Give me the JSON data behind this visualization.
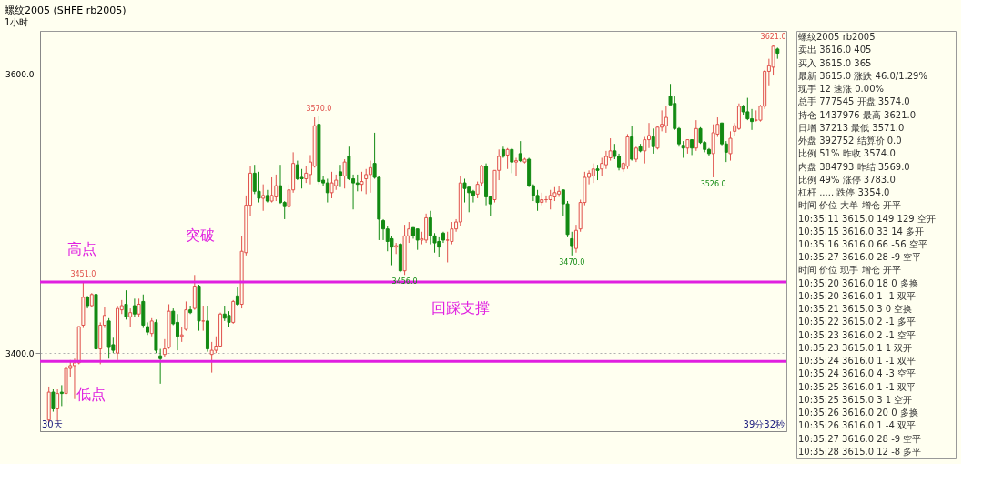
{
  "chart_data": [
    {
      "type": "candlestick",
      "title": "螺纹2005 (SHFE rb2005)",
      "subtitle": "1小时",
      "categories": [
        null,
        null,
        null,
        null,
        null,
        null,
        null,
        null,
        null,
        null,
        null,
        null,
        null,
        null,
        null,
        null,
        null,
        null,
        null,
        null,
        null,
        null,
        null,
        null,
        null,
        null,
        null,
        null,
        null,
        null,
        null,
        null,
        null,
        null,
        null,
        null,
        null,
        null,
        null,
        null,
        null,
        null,
        null,
        null,
        null,
        null,
        null,
        null,
        null,
        null,
        null,
        null,
        null,
        null,
        null,
        null,
        null,
        null,
        null,
        null,
        null,
        null,
        null,
        null,
        null,
        null,
        null,
        null,
        null,
        null,
        null,
        null,
        null,
        null,
        null,
        null,
        null,
        null,
        null,
        null,
        null,
        null,
        null,
        null,
        null,
        null,
        null,
        null,
        null,
        null,
        null,
        null,
        null,
        null,
        null,
        null,
        null,
        null,
        null,
        null,
        null,
        null,
        null,
        null,
        null,
        null,
        null,
        null,
        null,
        null,
        null,
        null,
        null,
        null,
        null,
        null,
        null,
        null,
        null,
        null,
        null,
        null,
        null,
        null,
        null,
        null,
        null,
        null,
        null,
        null,
        null,
        null,
        null,
        null,
        null,
        null,
        null,
        null,
        null,
        null,
        null,
        null,
        null,
        null,
        null,
        null,
        null,
        null,
        null,
        null,
        null,
        null,
        null,
        null,
        null,
        null,
        null,
        null,
        null,
        null,
        null,
        null,
        null,
        null,
        null,
        null,
        null,
        null,
        null,
        null,
        null
      ],
      "ohlc": [
        [
          3352,
          3376,
          3350,
          3372
        ],
        [
          3372,
          3374,
          3358,
          3360
        ],
        [
          3360,
          3374,
          3351,
          3371
        ],
        [
          3372,
          3377,
          3362,
          3371
        ],
        [
          3371,
          3394,
          3364,
          3389
        ],
        [
          3389,
          3395,
          3383,
          3391
        ],
        [
          3391,
          3396,
          3367,
          3393
        ],
        [
          3393,
          3419,
          3392,
          3419
        ],
        [
          3420,
          3451,
          3418,
          3440
        ],
        [
          3440,
          3441,
          3432,
          3434
        ],
        [
          3434,
          3443,
          3433,
          3442
        ],
        [
          3442,
          3443,
          3401,
          3403
        ],
        [
          3403,
          3422,
          3392,
          3420
        ],
        [
          3420,
          3433,
          3418,
          3427
        ],
        [
          3423,
          3425,
          3396,
          3404
        ],
        [
          3406,
          3411,
          3400,
          3402
        ],
        [
          3400,
          3434,
          3395,
          3432
        ],
        [
          3431,
          3438,
          3428,
          3434
        ],
        [
          3435,
          3445,
          3424,
          3426
        ],
        [
          3426,
          3432,
          3419,
          3429
        ],
        [
          3434,
          3439,
          3426,
          3428
        ],
        [
          3428,
          3439,
          3426,
          3435
        ],
        [
          3437,
          3442,
          3418,
          3420
        ],
        [
          3419,
          3422,
          3413,
          3415
        ],
        [
          3414,
          3425,
          3412,
          3423
        ],
        [
          3422,
          3424,
          3400,
          3402
        ],
        [
          3398,
          3403,
          3378,
          3396
        ],
        [
          3399,
          3410,
          3397,
          3403
        ],
        [
          3404,
          3435,
          3403,
          3430
        ],
        [
          3430,
          3432,
          3420,
          3421
        ],
        [
          3422,
          3428,
          3402,
          3412
        ],
        [
          3412,
          3419,
          3408,
          3413
        ],
        [
          3417,
          3437,
          3416,
          3431
        ],
        [
          3431,
          3434,
          3428,
          3429
        ],
        [
          3432,
          3456,
          3431,
          3448
        ],
        [
          3448,
          3449,
          3416,
          3423
        ],
        [
          3423,
          3434,
          3416,
          3423
        ],
        [
          3423,
          3434,
          3401,
          3403
        ],
        [
          3399,
          3408,
          3386,
          3402
        ],
        [
          3402,
          3412,
          3400,
          3405
        ],
        [
          3405,
          3429,
          3404,
          3428
        ],
        [
          3428,
          3434,
          3423,
          3425
        ],
        [
          3427,
          3430,
          3419,
          3422
        ],
        [
          3422,
          3438,
          3421,
          3437
        ],
        [
          3441,
          3447,
          3434,
          3435
        ],
        [
          3435,
          3484,
          3432,
          3473
        ],
        [
          3472,
          3513,
          3470,
          3506
        ],
        [
          3506,
          3534,
          3498,
          3529
        ],
        [
          3529,
          3535,
          3514,
          3516
        ],
        [
          3516,
          3530,
          3508,
          3511
        ],
        [
          3511,
          3521,
          3502,
          3513
        ],
        [
          3513,
          3517,
          3508,
          3509
        ],
        [
          3509,
          3526,
          3508,
          3513
        ],
        [
          3512,
          3528,
          3509,
          3520
        ],
        [
          3520,
          3535,
          3507,
          3508
        ],
        [
          3508,
          3509,
          3496,
          3505
        ],
        [
          3505,
          3521,
          3504,
          3517
        ],
        [
          3517,
          3544,
          3515,
          3536
        ],
        [
          3535,
          3538,
          3524,
          3525
        ],
        [
          3526,
          3532,
          3518,
          3525
        ],
        [
          3525,
          3534,
          3522,
          3529
        ],
        [
          3528,
          3542,
          3521,
          3537
        ],
        [
          3534,
          3569,
          3533,
          3563
        ],
        [
          3564,
          3570,
          3521,
          3523
        ],
        [
          3524,
          3527,
          3520,
          3522
        ],
        [
          3522,
          3525,
          3508,
          3515
        ],
        [
          3515,
          3530,
          3511,
          3522
        ],
        [
          3520,
          3528,
          3517,
          3524
        ],
        [
          3530,
          3535,
          3519,
          3527
        ],
        [
          3527,
          3539,
          3518,
          3537
        ],
        [
          3541,
          3548,
          3524,
          3525
        ],
        [
          3525,
          3528,
          3503,
          3522
        ],
        [
          3522,
          3528,
          3516,
          3521
        ],
        [
          3521,
          3530,
          3516,
          3523
        ],
        [
          3525,
          3532,
          3514,
          3528
        ],
        [
          3528,
          3538,
          3515,
          3533
        ],
        [
          3536,
          3558,
          3525,
          3526
        ],
        [
          3526,
          3527,
          3481,
          3496
        ],
        [
          3495,
          3496,
          3481,
          3489
        ],
        [
          3489,
          3491,
          3473,
          3480
        ],
        [
          3482,
          3484,
          3463,
          3476
        ],
        [
          3476,
          3479,
          3471,
          3477
        ],
        [
          3478,
          3479,
          3458,
          3459
        ],
        [
          3459,
          3492,
          3456,
          3484
        ],
        [
          3484,
          3494,
          3479,
          3489
        ],
        [
          3490,
          3490,
          3482,
          3484
        ],
        [
          3489,
          3489,
          3474,
          3481
        ],
        [
          3481,
          3487,
          3478,
          3482
        ],
        [
          3481,
          3500,
          3479,
          3497
        ],
        [
          3497,
          3502,
          3478,
          3484
        ],
        [
          3484,
          3486,
          3472,
          3479
        ],
        [
          3480,
          3483,
          3469,
          3476
        ],
        [
          3486,
          3487,
          3479,
          3481
        ],
        [
          3481,
          3487,
          3465,
          3481
        ],
        [
          3480,
          3494,
          3478,
          3489
        ],
        [
          3489,
          3496,
          3487,
          3494
        ],
        [
          3494,
          3527,
          3491,
          3522
        ],
        [
          3522,
          3525,
          3508,
          3518
        ],
        [
          3519,
          3519,
          3501,
          3515
        ],
        [
          3516,
          3517,
          3508,
          3513
        ],
        [
          3514,
          3523,
          3511,
          3521
        ],
        [
          3522,
          3535,
          3520,
          3534
        ],
        [
          3534,
          3536,
          3506,
          3512
        ],
        [
          3512,
          3512,
          3498,
          3507
        ],
        [
          3510,
          3531,
          3508,
          3531
        ],
        [
          3531,
          3546,
          3524,
          3541
        ],
        [
          3546,
          3548,
          3540,
          3541
        ],
        [
          3542,
          3547,
          3532,
          3546
        ],
        [
          3546,
          3547,
          3529,
          3537
        ],
        [
          3537,
          3540,
          3527,
          3538
        ],
        [
          3543,
          3552,
          3537,
          3538
        ],
        [
          3537,
          3540,
          3536,
          3539
        ],
        [
          3539,
          3540,
          3519,
          3520
        ],
        [
          3520,
          3521,
          3509,
          3513
        ],
        [
          3513,
          3517,
          3502,
          3508
        ],
        [
          3508,
          3515,
          3506,
          3510
        ],
        [
          3510,
          3513,
          3508,
          3510
        ],
        [
          3510,
          3517,
          3503,
          3513
        ],
        [
          3512,
          3519,
          3509,
          3515
        ],
        [
          3514,
          3520,
          3512,
          3516
        ],
        [
          3517,
          3517,
          3498,
          3507
        ],
        [
          3507,
          3509,
          3483,
          3485
        ],
        [
          3482,
          3487,
          3470,
          3477
        ],
        [
          3475,
          3492,
          3472,
          3488
        ],
        [
          3489,
          3510,
          3487,
          3508
        ],
        [
          3508,
          3530,
          3506,
          3526
        ],
        [
          3526,
          3531,
          3521,
          3529
        ],
        [
          3527,
          3536,
          3522,
          3532
        ],
        [
          3532,
          3535,
          3524,
          3531
        ],
        [
          3532,
          3540,
          3527,
          3536
        ],
        [
          3535,
          3545,
          3532,
          3541
        ],
        [
          3540,
          3554,
          3538,
          3545
        ],
        [
          3545,
          3550,
          3539,
          3541
        ],
        [
          3541,
          3543,
          3531,
          3533
        ],
        [
          3532,
          3537,
          3530,
          3536
        ],
        [
          3534,
          3557,
          3532,
          3555
        ],
        [
          3555,
          3563,
          3538,
          3539
        ],
        [
          3539,
          3548,
          3537,
          3547
        ],
        [
          3548,
          3550,
          3544,
          3545
        ],
        [
          3545,
          3555,
          3536,
          3553
        ],
        [
          3553,
          3565,
          3547,
          3556
        ],
        [
          3555,
          3561,
          3543,
          3548
        ],
        [
          3547,
          3563,
          3546,
          3562
        ],
        [
          3562,
          3574,
          3559,
          3564
        ],
        [
          3563,
          3577,
          3558,
          3569
        ],
        [
          3584,
          3593,
          3578,
          3578
        ],
        [
          3579,
          3584,
          3560,
          3561
        ],
        [
          3561,
          3562,
          3548,
          3550
        ],
        [
          3549,
          3552,
          3540,
          3547
        ],
        [
          3547,
          3553,
          3543,
          3553
        ],
        [
          3553,
          3553,
          3542,
          3547
        ],
        [
          3547,
          3567,
          3545,
          3561
        ],
        [
          3561,
          3562,
          3550,
          3551
        ],
        [
          3551,
          3552,
          3544,
          3546
        ],
        [
          3546,
          3547,
          3541,
          3543
        ],
        [
          3543,
          3564,
          3526,
          3558
        ],
        [
          3557,
          3569,
          3555,
          3564
        ],
        [
          3565,
          3565,
          3549,
          3550
        ],
        [
          3550,
          3552,
          3537,
          3544
        ],
        [
          3543,
          3559,
          3538,
          3554
        ],
        [
          3559,
          3565,
          3556,
          3563
        ],
        [
          3561,
          3579,
          3560,
          3577
        ],
        [
          3577,
          3578,
          3571,
          3573
        ],
        [
          3573,
          3583,
          3567,
          3568
        ],
        [
          3568,
          3575,
          3560,
          3566
        ],
        [
          3567,
          3574,
          3566,
          3567
        ],
        [
          3567,
          3578,
          3566,
          3577
        ],
        [
          3577,
          3603,
          3575,
          3602
        ],
        [
          3602,
          3611,
          3592,
          3606
        ],
        [
          3605,
          3621,
          3599,
          3620
        ],
        [
          3618,
          3619,
          3611,
          3615
        ]
      ],
      "ylim": [
        3344,
        3631
      ],
      "yticks": [
        {
          "value": 3600,
          "label": "3600.0"
        },
        {
          "value": 3400,
          "label": "3400.0"
        }
      ],
      "grid": "y",
      "tick_labels": "y",
      "ref_lines": [
        {
          "axis": "y",
          "value": 3451,
          "color": "#e020e0"
        },
        {
          "axis": "y",
          "value": 3394,
          "color": "#e020e0"
        }
      ],
      "annotations": [
        {
          "text": "3451.0",
          "y": 3451
        },
        {
          "text": "3570.0",
          "y": 3570
        },
        {
          "text": "3456.0",
          "y": 3456
        },
        {
          "text": "3470.0",
          "y": 3470
        },
        {
          "text": "3526.0",
          "y": 3526
        },
        {
          "text": "3621.0",
          "y": 3621
        },
        "高点",
        "低点",
        "突破",
        "回踩支撑",
        "30天",
        "39分32秒"
      ]
    },
    {
      "type": "other",
      "annotations": [
        "螺纹2005  rb2005",
        "卖出  3616.0  405",
        "买入  3615.0  365",
        "最新 3615.0  涨跌 46.0/1.29%",
        "现手 12  速涨 0.00%",
        "总手 777545  开盘 3574.0",
        "持仓 1437976  最高 3621.0",
        "日增 37213  最低 3571.0",
        "外盘 392752  结算价 0.0",
        "比例 51%  昨收 3574.0",
        "内盘 384793  昨结 3569.0",
        "比例 49%  涨停 3783.0",
        "杠杆 .....  跌停 3354.0",
        "时间  价位  大单  增仓  开平",
        "10:35:11  3615.0  149  129  空开",
        "10:35:15  3616.0  33  14  多开",
        "10:35:16  3616.0  66  -56  空平",
        "10:35:27  3616.0  28  -9  空平",
        "时间  价位  现手  增仓  开平",
        "10:35:20  3616.0  18  0  多换",
        "10:35:20  3616.0  1  -1  双平",
        "10:35:21  3615.0  3  0  空换",
        "10:35:22  3615.0  2  -1  多平",
        "10:35:23  3616.0  2  -1  空平",
        "10:35:23  3615.0  1  1  双开",
        "10:35:24  3616.0  1  -1  双平",
        "10:35:24  3616.0  4  -3  空平",
        "10:35:25  3616.0  1  -1  双平",
        "10:35:25  3615.0  3  1  空开",
        "10:35:26  3616.0  20  0  多换",
        "10:35:26  3616.0  1  -4  双平",
        "10:35:27  3616.0  28  -9  空平",
        "10:35:28  3615.0  12  -8  多平"
      ]
    }
  ]
}
